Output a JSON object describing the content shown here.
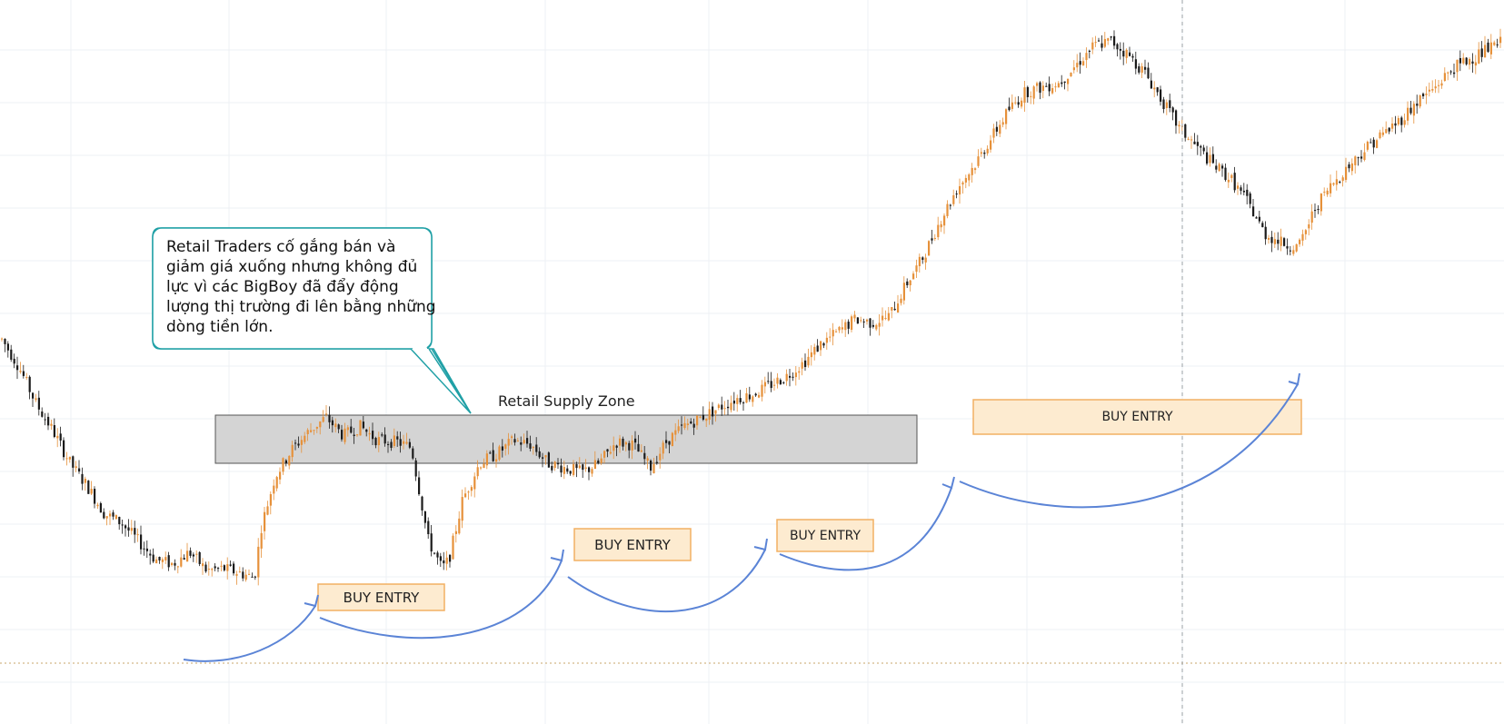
{
  "colors": {
    "bull": "#e6913a",
    "bear": "#1b1b1b",
    "grid": "#eef1f4",
    "zone_fill": "#d4d4d4",
    "entry_fill": "#fdebd0",
    "entry_border": "#f2b063",
    "arrow": "#5b84d6",
    "callout_border": "#20a0a6"
  },
  "chart_data": {
    "type": "candlestick",
    "title": "",
    "xlabel": "",
    "ylabel": "",
    "grid": true,
    "price_line": "dotted-bottom",
    "annotations": {
      "callout": "Retail Traders cố gắng bán và giảm giá xuống nhưng không đủ lực vì các BigBoy đã đẩy động lượng thị trường đi lên bằng những dòng tiền lớn.",
      "supply_zone": "Retail Supply Zone",
      "buy_entries": [
        "BUY ENTRY",
        "BUY ENTRY",
        "BUY ENTRY",
        "BUY ENTRY"
      ]
    },
    "trend_path": [
      [
        0,
        350
      ],
      [
        10,
        320
      ],
      [
        20,
        280
      ],
      [
        30,
        250
      ],
      [
        40,
        215
      ],
      [
        50,
        190
      ],
      [
        60,
        160
      ],
      [
        70,
        150
      ],
      [
        80,
        130
      ],
      [
        90,
        110
      ],
      [
        100,
        105
      ],
      [
        110,
        118
      ],
      [
        120,
        98
      ],
      [
        130,
        100
      ],
      [
        140,
        95
      ],
      [
        148,
        90
      ],
      [
        152,
        145
      ],
      [
        160,
        200
      ],
      [
        170,
        230
      ],
      [
        180,
        250
      ],
      [
        190,
        265
      ],
      [
        200,
        245
      ],
      [
        210,
        255
      ],
      [
        220,
        240
      ],
      [
        232,
        238
      ],
      [
        240,
        232
      ],
      [
        250,
        130
      ],
      [
        258,
        100
      ],
      [
        262,
        110
      ],
      [
        270,
        175
      ],
      [
        280,
        215
      ],
      [
        290,
        225
      ],
      [
        300,
        240
      ],
      [
        310,
        235
      ],
      [
        320,
        215
      ],
      [
        330,
        210
      ],
      [
        340,
        205
      ],
      [
        350,
        215
      ],
      [
        360,
        238
      ],
      [
        370,
        235
      ],
      [
        380,
        210
      ],
      [
        390,
        240
      ],
      [
        400,
        255
      ],
      [
        410,
        265
      ],
      [
        420,
        275
      ],
      [
        430,
        285
      ],
      [
        440,
        290
      ],
      [
        450,
        300
      ],
      [
        460,
        310
      ],
      [
        470,
        325
      ],
      [
        480,
        345
      ],
      [
        490,
        358
      ],
      [
        500,
        372
      ],
      [
        510,
        368
      ],
      [
        520,
        375
      ],
      [
        530,
        410
      ],
      [
        540,
        440
      ],
      [
        550,
        480
      ],
      [
        560,
        515
      ],
      [
        570,
        540
      ],
      [
        580,
        570
      ],
      [
        590,
        600
      ],
      [
        600,
        620
      ],
      [
        610,
        625
      ],
      [
        620,
        630
      ],
      [
        630,
        650
      ],
      [
        640,
        670
      ],
      [
        650,
        675
      ],
      [
        660,
        660
      ],
      [
        670,
        640
      ],
      [
        680,
        610
      ],
      [
        690,
        580
      ],
      [
        700,
        560
      ],
      [
        710,
        540
      ],
      [
        720,
        525
      ],
      [
        730,
        500
      ],
      [
        740,
        465
      ],
      [
        750,
        455
      ],
      [
        760,
        450
      ],
      [
        770,
        495
      ],
      [
        780,
        520
      ],
      [
        790,
        540
      ],
      [
        800,
        560
      ],
      [
        810,
        575
      ],
      [
        820,
        590
      ],
      [
        830,
        610
      ],
      [
        840,
        625
      ],
      [
        850,
        645
      ],
      [
        860,
        655
      ],
      [
        870,
        665
      ],
      [
        880,
        675
      ]
    ],
    "y_range": [
      0,
      700
    ]
  }
}
